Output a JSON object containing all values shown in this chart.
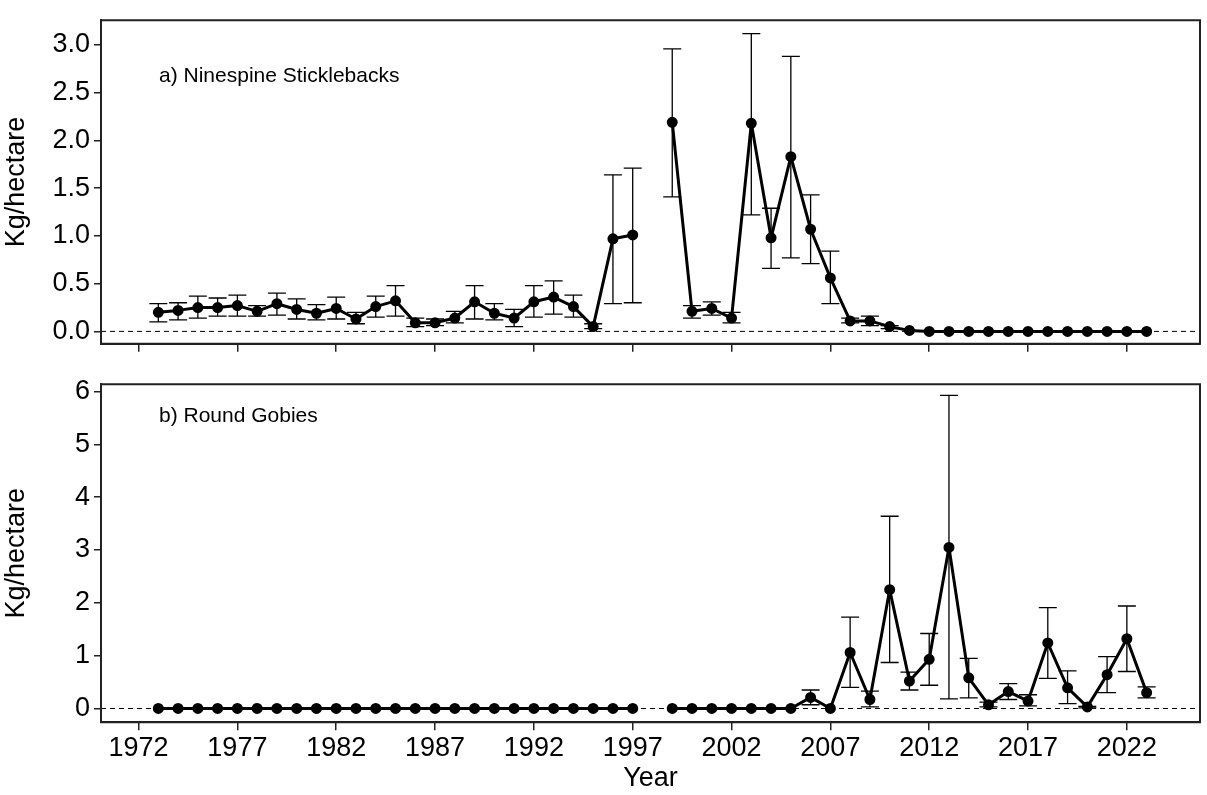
{
  "chart_data": [
    {
      "type": "line",
      "ylabel": "Kg/hectare",
      "annotations": [
        "a) Ninespine Sticklebacks"
      ],
      "x": [
        1973,
        1974,
        1975,
        1976,
        1977,
        1978,
        1979,
        1980,
        1981,
        1982,
        1983,
        1984,
        1985,
        1986,
        1987,
        1988,
        1989,
        1990,
        1991,
        1992,
        1993,
        1994,
        1995,
        1996,
        1997,
        1998,
        1999,
        2000,
        2001,
        2002,
        2003,
        2004,
        2005,
        2006,
        2007,
        2008,
        2009,
        2010,
        2011,
        2012,
        2013,
        2014,
        2015,
        2016,
        2017,
        2018,
        2019,
        2020,
        2021,
        2022,
        2023
      ],
      "series": [
        {
          "color": "#000000",
          "values": [
            0.2,
            0.22,
            0.25,
            0.25,
            0.27,
            0.21,
            0.29,
            0.23,
            0.19,
            0.24,
            0.13,
            0.26,
            0.32,
            0.09,
            0.09,
            0.14,
            0.31,
            0.19,
            0.14,
            0.31,
            0.36,
            0.26,
            0.05,
            0.97,
            1.01,
            null,
            2.19,
            0.21,
            0.24,
            0.14,
            2.18,
            0.98,
            1.83,
            1.07,
            0.56,
            0.11,
            0.11,
            0.05,
            0.01,
            0,
            0,
            0,
            0,
            0,
            0,
            0,
            0,
            0,
            0,
            0,
            0
          ],
          "errors": [
            [
              0.1,
              0.29
            ],
            [
              0.12,
              0.3
            ],
            [
              0.14,
              0.37
            ],
            [
              0.16,
              0.35
            ],
            [
              0.16,
              0.38
            ],
            [
              0.16,
              0.27
            ],
            [
              0.17,
              0.4
            ],
            [
              0.13,
              0.34
            ],
            [
              0.12,
              0.28
            ],
            [
              0.13,
              0.36
            ],
            [
              0.08,
              0.2
            ],
            [
              0.15,
              0.37
            ],
            [
              0.16,
              0.48
            ],
            [
              0.05,
              0.14
            ],
            [
              0.06,
              0.13
            ],
            [
              0.09,
              0.21
            ],
            [
              0.13,
              0.48
            ],
            [
              0.12,
              0.29
            ],
            [
              0.05,
              0.23
            ],
            [
              0.15,
              0.48
            ],
            [
              0.18,
              0.53
            ],
            [
              0.15,
              0.38
            ],
            [
              0.03,
              0.08
            ],
            [
              0.29,
              1.64
            ],
            [
              0.3,
              1.71
            ],
            null,
            [
              1.41,
              2.96
            ],
            [
              0.14,
              0.27
            ],
            [
              0.17,
              0.31
            ],
            [
              0.09,
              0.2
            ],
            [
              1.22,
              3.12
            ],
            [
              0.66,
              1.29
            ],
            [
              0.77,
              2.88
            ],
            [
              0.71,
              1.43
            ],
            [
              0.29,
              0.84
            ],
            [
              0.09,
              0.14
            ],
            [
              0.06,
              0.16
            ],
            [
              0.03,
              0.06
            ],
            null,
            null,
            null,
            null,
            null,
            null,
            null,
            null,
            null,
            null,
            null,
            null,
            null
          ]
        }
      ],
      "xlim": [
        1970.1,
        2025.7
      ],
      "xticks": [
        1972,
        1977,
        1982,
        1987,
        1992,
        1997,
        2002,
        2007,
        2012,
        2017,
        2022
      ],
      "ylim": [
        -0.13,
        3.26
      ],
      "yticks": [
        {
          "value": 0,
          "label": "0.0"
        },
        {
          "value": 0.5,
          "label": "0.5"
        },
        {
          "value": 1,
          "label": "1.0"
        },
        {
          "value": 1.5,
          "label": "1.5"
        },
        {
          "value": 2,
          "label": "2.0"
        },
        {
          "value": 2.5,
          "label": "2.5"
        },
        {
          "value": 3,
          "label": "3.0"
        }
      ],
      "tick_labels": "y",
      "ref_lines": [
        {
          "axis": "y",
          "value": 0,
          "line_style": "dashed"
        }
      ],
      "grid": false,
      "legend": false,
      "marker": "circle",
      "line_style": "solid"
    },
    {
      "type": "line",
      "xlabel": "Year",
      "ylabel": "Kg/hectare",
      "annotations": [
        "b) Round Gobies"
      ],
      "x": [
        1973,
        1974,
        1975,
        1976,
        1977,
        1978,
        1979,
        1980,
        1981,
        1982,
        1983,
        1984,
        1985,
        1986,
        1987,
        1988,
        1989,
        1990,
        1991,
        1992,
        1993,
        1994,
        1995,
        1996,
        1997,
        1998,
        1999,
        2000,
        2001,
        2002,
        2003,
        2004,
        2005,
        2006,
        2007,
        2008,
        2009,
        2010,
        2011,
        2012,
        2013,
        2014,
        2015,
        2016,
        2017,
        2018,
        2019,
        2020,
        2021,
        2022,
        2023
      ],
      "series": [
        {
          "color": "#000000",
          "values": [
            0,
            0,
            0,
            0,
            0,
            0,
            0,
            0,
            0,
            0,
            0,
            0,
            0,
            0,
            0,
            0,
            0,
            0,
            0,
            0,
            0,
            0,
            0,
            0,
            0,
            null,
            0,
            0,
            0,
            0,
            0,
            0,
            0,
            0.21,
            0,
            1.06,
            0.17,
            2.25,
            0.52,
            0.93,
            3.05,
            0.58,
            0.07,
            0.32,
            0.14,
            1.24,
            0.39,
            0.03,
            0.64,
            1.32,
            0.3
          ],
          "errors": [
            null,
            null,
            null,
            null,
            null,
            null,
            null,
            null,
            null,
            null,
            null,
            null,
            null,
            null,
            null,
            null,
            null,
            null,
            null,
            null,
            null,
            null,
            null,
            null,
            null,
            null,
            null,
            null,
            null,
            null,
            null,
            null,
            null,
            [
              0.07,
              0.35
            ],
            null,
            [
              0.4,
              1.73
            ],
            [
              0.03,
              0.33
            ],
            [
              0.87,
              3.64
            ],
            [
              0.35,
              0.69
            ],
            [
              0.44,
              1.42
            ],
            [
              0.18,
              5.93
            ],
            [
              0.2,
              0.95
            ],
            [
              0.03,
              0.12
            ],
            [
              0.17,
              0.47
            ],
            [
              0.05,
              0.26
            ],
            [
              0.57,
              1.91
            ],
            [
              0.09,
              0.71
            ],
            [
              0.01,
              0.04
            ],
            [
              0.3,
              0.98
            ],
            [
              0.7,
              1.94
            ],
            [
              0.2,
              0.41
            ]
          ]
        }
      ],
      "xlim": [
        1970.1,
        2025.7
      ],
      "xticks": [
        1972,
        1977,
        1982,
        1987,
        1992,
        1997,
        2002,
        2007,
        2012,
        2017,
        2022
      ],
      "ylim": [
        -0.26,
        6.14
      ],
      "yticks": [
        0,
        1,
        2,
        3,
        4,
        5,
        6
      ],
      "ref_lines": [
        {
          "axis": "y",
          "value": 0,
          "line_style": "dashed"
        }
      ],
      "grid": false,
      "legend": false,
      "marker": "circle",
      "line_style": "solid"
    }
  ]
}
